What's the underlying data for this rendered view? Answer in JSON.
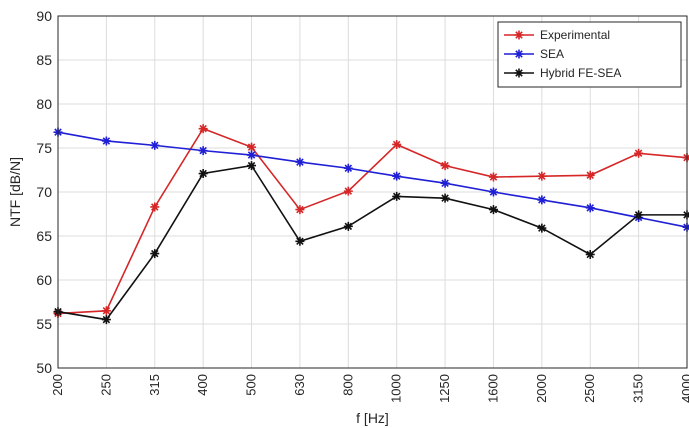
{
  "chart_data": {
    "type": "line",
    "title": "",
    "xlabel": "f [Hz]",
    "ylabel": "NTF [dB/N]",
    "categories": [
      "200",
      "250",
      "315",
      "400",
      "500",
      "630",
      "800",
      "1000",
      "1250",
      "1600",
      "2000",
      "2500",
      "3150",
      "4000"
    ],
    "ylim": [
      50,
      90
    ],
    "yticks": [
      "50",
      "55",
      "60",
      "65",
      "70",
      "75",
      "80",
      "85",
      "90"
    ],
    "grid": true,
    "legend_position": "top-right",
    "series": [
      {
        "name": "Experimental",
        "color": "#d62728",
        "marker": "star",
        "values": [
          56.2,
          56.5,
          68.3,
          77.2,
          75.1,
          68.0,
          70.1,
          75.4,
          73.0,
          71.7,
          71.8,
          71.9,
          74.4,
          73.9
        ]
      },
      {
        "name": "SEA",
        "color": "#1f1fd6",
        "marker": "star",
        "values": [
          76.8,
          75.8,
          75.3,
          74.7,
          74.2,
          73.4,
          72.7,
          71.8,
          71.0,
          70.0,
          69.1,
          68.2,
          67.1,
          66.0
        ]
      },
      {
        "name": "Hybrid FE-SEA",
        "color": "#111111",
        "marker": "star",
        "values": [
          56.4,
          55.5,
          63.0,
          72.1,
          73.0,
          64.4,
          66.1,
          69.5,
          69.3,
          68.0,
          65.9,
          62.9,
          67.4,
          67.4
        ]
      }
    ]
  }
}
